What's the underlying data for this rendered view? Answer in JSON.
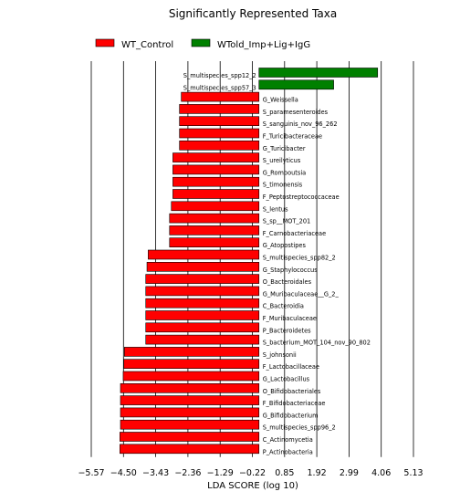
{
  "chart_data": {
    "type": "bar",
    "orientation": "horizontal",
    "title": "Significantly Represented Taxa",
    "xlabel": "LDA SCORE (log 10)",
    "ylabel": "",
    "xlim": [
      -5.57,
      5.13
    ],
    "xticks": [
      "-5.57",
      "-4.50",
      "-3.43",
      "-2.36",
      "-1.29",
      "-0.22",
      "0.85",
      "1.92",
      "2.99",
      "4.06",
      "5.13"
    ],
    "grid": "vertical lines",
    "legend_position": "top",
    "series": [
      {
        "name": "WT_Control",
        "color": "#ff0000"
      },
      {
        "name": "WTold_Imp+Lig+IgG",
        "color": "#008000"
      }
    ],
    "categories": [
      "S_multispecies_spp12_2",
      "S_multispecies_spp57_3",
      "G_Weissella",
      "S_paramesenteroides",
      "S_sanguinis_nov_96_262",
      "F_Turicibacteraceae",
      "G_Turicibacter",
      "S_ureilyticus",
      "G_Romboutsia",
      "S_timonensis",
      "F_Peptostreptococcaceae",
      "S_lentus",
      "S_sp__MOT_201",
      "F_Carnobacteriaceae",
      "G_Atopostipes",
      "S_multispecies_spp82_2",
      "G_Staphylococcus",
      "O_Bacteroidales",
      "G_Muribaculaceae__G_2_",
      "C_Bacteroidia",
      "F_Muribaculaceae",
      "P_Bacteroidetes",
      "S_bacterium_MOT_104_nov_90_802",
      "S_johnsonii",
      "F_Lactobacillaceae",
      "G_Lactobacillus",
      "O_Bifidobacteriales",
      "F_Bifidobacteriaceae",
      "G_Bifidobacterium",
      "S_multispecies_spp96_2",
      "C_Actinomycetia",
      "P_Actinobacteria"
    ],
    "values": [
      3.94,
      2.48,
      -2.58,
      -2.64,
      -2.64,
      -2.64,
      -2.64,
      -2.86,
      -2.86,
      -2.86,
      -2.86,
      -2.91,
      -2.97,
      -2.97,
      -2.97,
      -3.68,
      -3.72,
      -3.76,
      -3.76,
      -3.76,
      -3.76,
      -3.76,
      -3.76,
      -4.47,
      -4.49,
      -4.51,
      -4.6,
      -4.6,
      -4.6,
      -4.6,
      -4.62,
      -4.62
    ],
    "groups": [
      "WTold_Imp+Lig+IgG",
      "WTold_Imp+Lig+IgG",
      "WT_Control",
      "WT_Control",
      "WT_Control",
      "WT_Control",
      "WT_Control",
      "WT_Control",
      "WT_Control",
      "WT_Control",
      "WT_Control",
      "WT_Control",
      "WT_Control",
      "WT_Control",
      "WT_Control",
      "WT_Control",
      "WT_Control",
      "WT_Control",
      "WT_Control",
      "WT_Control",
      "WT_Control",
      "WT_Control",
      "WT_Control",
      "WT_Control",
      "WT_Control",
      "WT_Control",
      "WT_Control",
      "WT_Control",
      "WT_Control",
      "WT_Control",
      "WT_Control",
      "WT_Control"
    ]
  }
}
